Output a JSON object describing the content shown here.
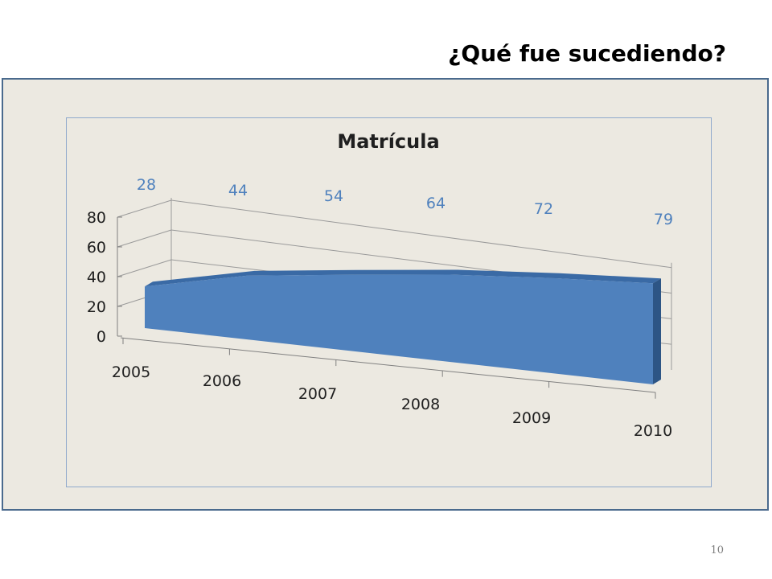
{
  "slide": {
    "title": "¿Qué fue sucediendo?",
    "page_number": "10"
  },
  "colors": {
    "area_front": "#4f81bd",
    "area_top": "#3a6aa5",
    "area_side": "#2d5585",
    "data_label": "#4f81bd",
    "panel_border": "#4a6a8d",
    "panel_background": "#ece9e1"
  },
  "chart_data": {
    "type": "area",
    "title": "Matrícula",
    "categories": [
      "2005",
      "2006",
      "2007",
      "2008",
      "2009",
      "2010"
    ],
    "series": [
      {
        "values": [
          28,
          44,
          54,
          64,
          72,
          79
        ]
      }
    ],
    "y_ticks": [
      "0",
      "20",
      "40",
      "60",
      "80"
    ],
    "ylim": [
      0,
      80
    ],
    "grid": true,
    "three_d": true
  }
}
